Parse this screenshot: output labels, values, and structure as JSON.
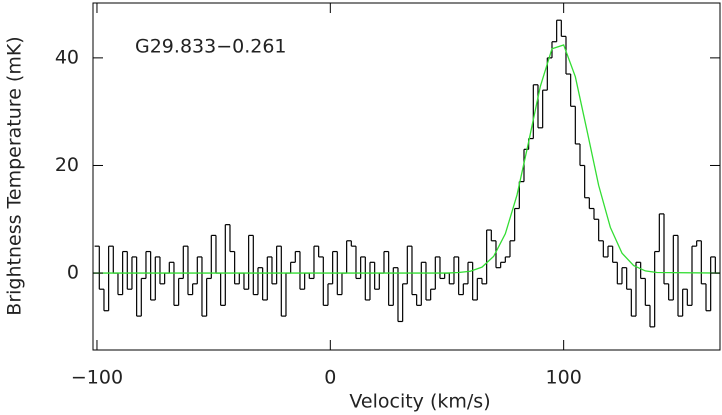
{
  "chart_data": {
    "type": "line",
    "drawstyle": "steps-mid",
    "annotation": "G29.833−0.261",
    "xlabel": "Velocity (km/s)",
    "ylabel": "Brightness Temperature (mK)",
    "xlim": [
      -101.7,
      167
    ],
    "ylim": [
      -14.3,
      50.2
    ],
    "xticks": [
      {
        "value": -100,
        "label": "−100"
      },
      0,
      100
    ],
    "yticks": [
      0,
      20,
      40
    ],
    "grid": false,
    "x": [
      -100,
      -98,
      -96,
      -94,
      -92,
      -90,
      -88,
      -86,
      -84,
      -82,
      -80,
      -78,
      -76,
      -74,
      -72,
      -70,
      -68,
      -66,
      -64,
      -62,
      -60,
      -58,
      -56,
      -54,
      -52,
      -50,
      -48,
      -46,
      -44,
      -42,
      -40,
      -38,
      -36,
      -34,
      -32,
      -30,
      -28,
      -26,
      -24,
      -22,
      -20,
      -18,
      -16,
      -14,
      -12,
      -10,
      -8,
      -6,
      -4,
      -2,
      0,
      2,
      4,
      6,
      8,
      10,
      12,
      14,
      16,
      18,
      20,
      22,
      24,
      26,
      28,
      30,
      32,
      34,
      36,
      38,
      40,
      42,
      44,
      46,
      48,
      50,
      52,
      54,
      56,
      58,
      60,
      62,
      64,
      66,
      68,
      70,
      72,
      74,
      76,
      78,
      80,
      82,
      84,
      86,
      88,
      90,
      92,
      94,
      96,
      98,
      100,
      102,
      104,
      106,
      108,
      110,
      112,
      114,
      116,
      118,
      120,
      122,
      124,
      126,
      128,
      130,
      132,
      134,
      136,
      138,
      140,
      142,
      144,
      146,
      148,
      150,
      152,
      154,
      156,
      158,
      160,
      162,
      164,
      166
    ],
    "series": [
      {
        "name": "spectrum",
        "color": "#000000",
        "drawstyle": "steps-mid",
        "values": [
          5,
          -3,
          -7,
          5,
          0,
          -4,
          4,
          -3,
          3,
          -8,
          -1,
          4,
          -5,
          3,
          -2,
          0,
          2,
          -6,
          -1,
          5,
          -4,
          -2,
          3,
          -8,
          -1,
          7,
          0,
          -6,
          9,
          4,
          -2,
          0,
          -3,
          7,
          -4,
          1,
          -5,
          3,
          -2,
          5,
          -8,
          0,
          2,
          4,
          -3,
          0,
          -1,
          5,
          3,
          -6,
          -2,
          4,
          -4,
          0,
          6,
          5,
          -1,
          3,
          -5,
          2,
          -3,
          0,
          4,
          -6,
          1,
          -9,
          -2,
          5,
          -4,
          -6,
          2,
          -5,
          -3,
          3,
          -1,
          0,
          -2,
          3,
          -4,
          -2,
          2,
          -5,
          -1,
          -2,
          8,
          6,
          1,
          2,
          3,
          6,
          12,
          17,
          23,
          25,
          35,
          27,
          34,
          40,
          43,
          47,
          44,
          37,
          31,
          24,
          20,
          14,
          12,
          10,
          6,
          3,
          5,
          2,
          -2,
          1,
          -3,
          -8,
          2,
          -1,
          -6,
          -10,
          4,
          11,
          -2,
          -5,
          7,
          -8,
          -3,
          -6,
          5,
          6,
          -2,
          -7,
          3,
          0
        ]
      },
      {
        "name": "gaussian fit",
        "color": "#33dd33",
        "drawstyle": "line",
        "x": [
          -101.7,
          50,
          55,
          60,
          65,
          70,
          75,
          80,
          85,
          90,
          95,
          100,
          105,
          110,
          115,
          120,
          125,
          130,
          135,
          140,
          167
        ],
        "values": [
          0,
          0,
          0.1,
          0.34,
          1.1,
          3.1,
          7.3,
          14.5,
          24.4,
          34.7,
          41.7,
          42.4,
          36.5,
          26.5,
          16.3,
          8.5,
          3.7,
          1.4,
          0.4,
          0.1,
          0
        ]
      }
    ]
  }
}
